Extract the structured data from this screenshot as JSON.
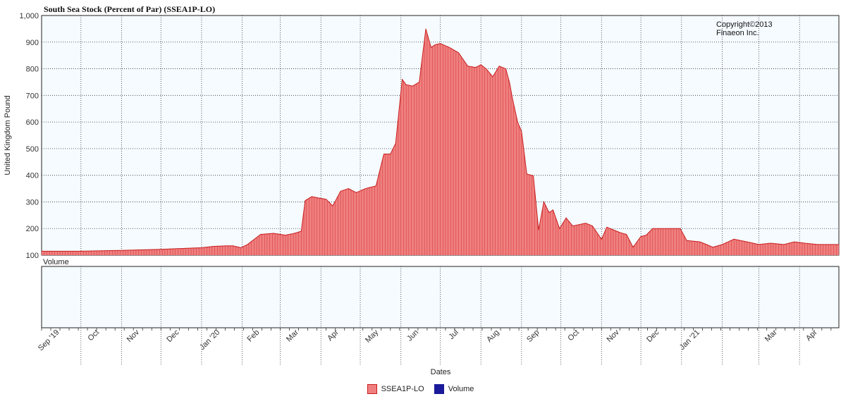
{
  "chart_data": {
    "type": "area",
    "title": "South Sea Stock (Percent of Par) (SSEA1P-LO)",
    "copyright": [
      "Copyright©2013",
      "Finaeon Inc."
    ],
    "ylabel": "United Kingdom Pound",
    "xlabel": "Dates",
    "volume_label": "Volume",
    "ylim": [
      100,
      1000
    ],
    "yticks": [
      "100",
      "200",
      "300",
      "400",
      "500",
      "600",
      "700",
      "800",
      "900",
      "1,000"
    ],
    "xticks": [
      "Sep '19",
      "Oct",
      "Nov",
      "Dec",
      "Jan '20",
      "Feb",
      "Mar",
      "Apr",
      "May",
      "Jun",
      "Jul",
      "Aug",
      "Sep",
      "Oct",
      "Nov",
      "Dec",
      "Jan '21",
      "Mar",
      "Apr"
    ],
    "x_start": "1719-09-01",
    "x_end": "1721-05-01",
    "grid": true,
    "legend_position": "bottom",
    "colors": {
      "series": "#f08080",
      "series_edge": "#c81e1e",
      "volume": "#1a1a9a",
      "plot_bg": "#f5fbff"
    },
    "series": [
      {
        "name": "SSEA1P-LO",
        "x": [
          "1719-09-01",
          "1719-10-01",
          "1719-11-01",
          "1719-12-01",
          "1720-01-01",
          "1720-01-10",
          "1720-01-20",
          "1720-01-25",
          "1720-01-31",
          "1720-02-05",
          "1720-02-15",
          "1720-02-25",
          "1720-03-05",
          "1720-03-10",
          "1720-03-14",
          "1720-03-17",
          "1720-03-20",
          "1720-03-25",
          "1720-03-30",
          "1720-04-05",
          "1720-04-10",
          "1720-04-16",
          "1720-04-22",
          "1720-04-28",
          "1720-05-05",
          "1720-05-13",
          "1720-05-19",
          "1720-05-24",
          "1720-05-28",
          "1720-06-02",
          "1720-06-05",
          "1720-06-10",
          "1720-06-15",
          "1720-06-20",
          "1720-06-24",
          "1720-06-27",
          "1720-07-01",
          "1720-07-08",
          "1720-07-15",
          "1720-07-22",
          "1720-07-28",
          "1720-08-01",
          "1720-08-05",
          "1720-08-10",
          "1720-08-15",
          "1720-08-20",
          "1720-08-23",
          "1720-08-25",
          "1720-08-29",
          "1720-09-01",
          "1720-09-05",
          "1720-09-10",
          "1720-09-14",
          "1720-09-18",
          "1720-09-22",
          "1720-09-25",
          "1720-09-30",
          "1720-10-05",
          "1720-10-10",
          "1720-10-15",
          "1720-10-20",
          "1720-10-25",
          "1720-11-01",
          "1720-11-05",
          "1720-11-10",
          "1720-11-15",
          "1720-11-20",
          "1720-11-25",
          "1720-12-01",
          "1720-12-05",
          "1720-12-10",
          "1720-12-15",
          "1720-12-20",
          "1720-12-25",
          "1720-12-31",
          "1721-01-05",
          "1721-01-15",
          "1721-01-25",
          "1721-02-01",
          "1721-02-10",
          "1721-02-20",
          "1721-03-01",
          "1721-03-10",
          "1721-03-20",
          "1721-03-28",
          "1721-04-05",
          "1721-04-15",
          "1721-04-25",
          "1721-05-01"
        ],
        "values": [
          115,
          115,
          118,
          122,
          128,
          133,
          135,
          135,
          128,
          140,
          178,
          182,
          175,
          180,
          185,
          190,
          305,
          320,
          315,
          310,
          285,
          340,
          350,
          335,
          350,
          360,
          480,
          480,
          520,
          760,
          740,
          735,
          750,
          950,
          880,
          890,
          895,
          880,
          860,
          810,
          805,
          815,
          800,
          770,
          810,
          800,
          745,
          690,
          600,
          565,
          405,
          398,
          195,
          300,
          260,
          270,
          200,
          240,
          210,
          215,
          220,
          210,
          160,
          205,
          195,
          185,
          178,
          130,
          170,
          175,
          200,
          200,
          200,
          200,
          200,
          155,
          150,
          130,
          140,
          160,
          150,
          140,
          145,
          140,
          150,
          145,
          140,
          140,
          140
        ]
      },
      {
        "name": "Volume",
        "values": []
      }
    ]
  }
}
